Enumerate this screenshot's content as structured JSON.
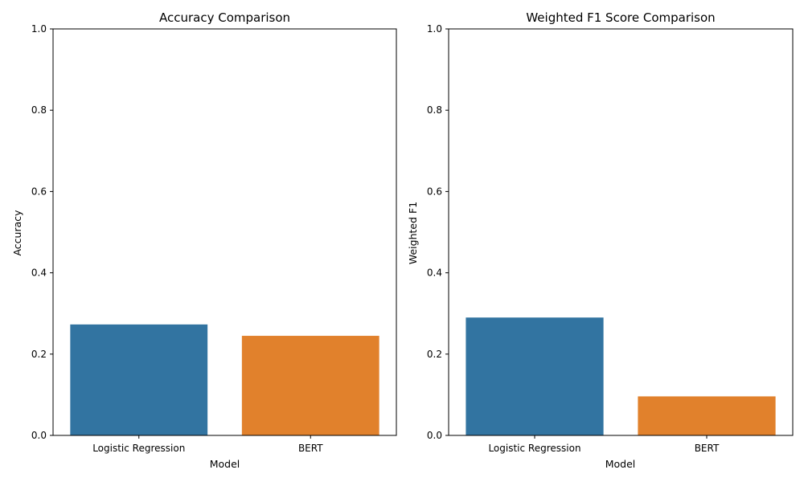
{
  "chart_data": [
    {
      "type": "bar",
      "title": "Accuracy Comparison",
      "xlabel": "Model",
      "ylabel": "Accuracy",
      "categories": [
        "Logistic Regression",
        "BERT"
      ],
      "values": [
        0.273,
        0.245
      ],
      "ylim": [
        0,
        1
      ],
      "yticks": [
        "0.0",
        "0.2",
        "0.4",
        "0.6",
        "0.8",
        "1.0"
      ],
      "colors": [
        "#3274a1",
        "#e1812c"
      ],
      "grid": false
    },
    {
      "type": "bar",
      "title": "Weighted F1 Score Comparison",
      "xlabel": "Model",
      "ylabel": "Weighted F1",
      "categories": [
        "Logistic Regression",
        "BERT"
      ],
      "values": [
        0.29,
        0.096
      ],
      "ylim": [
        0,
        1
      ],
      "yticks": [
        "0.0",
        "0.2",
        "0.4",
        "0.6",
        "0.8",
        "1.0"
      ],
      "colors": [
        "#3274a1",
        "#e1812c"
      ],
      "grid": false
    }
  ]
}
